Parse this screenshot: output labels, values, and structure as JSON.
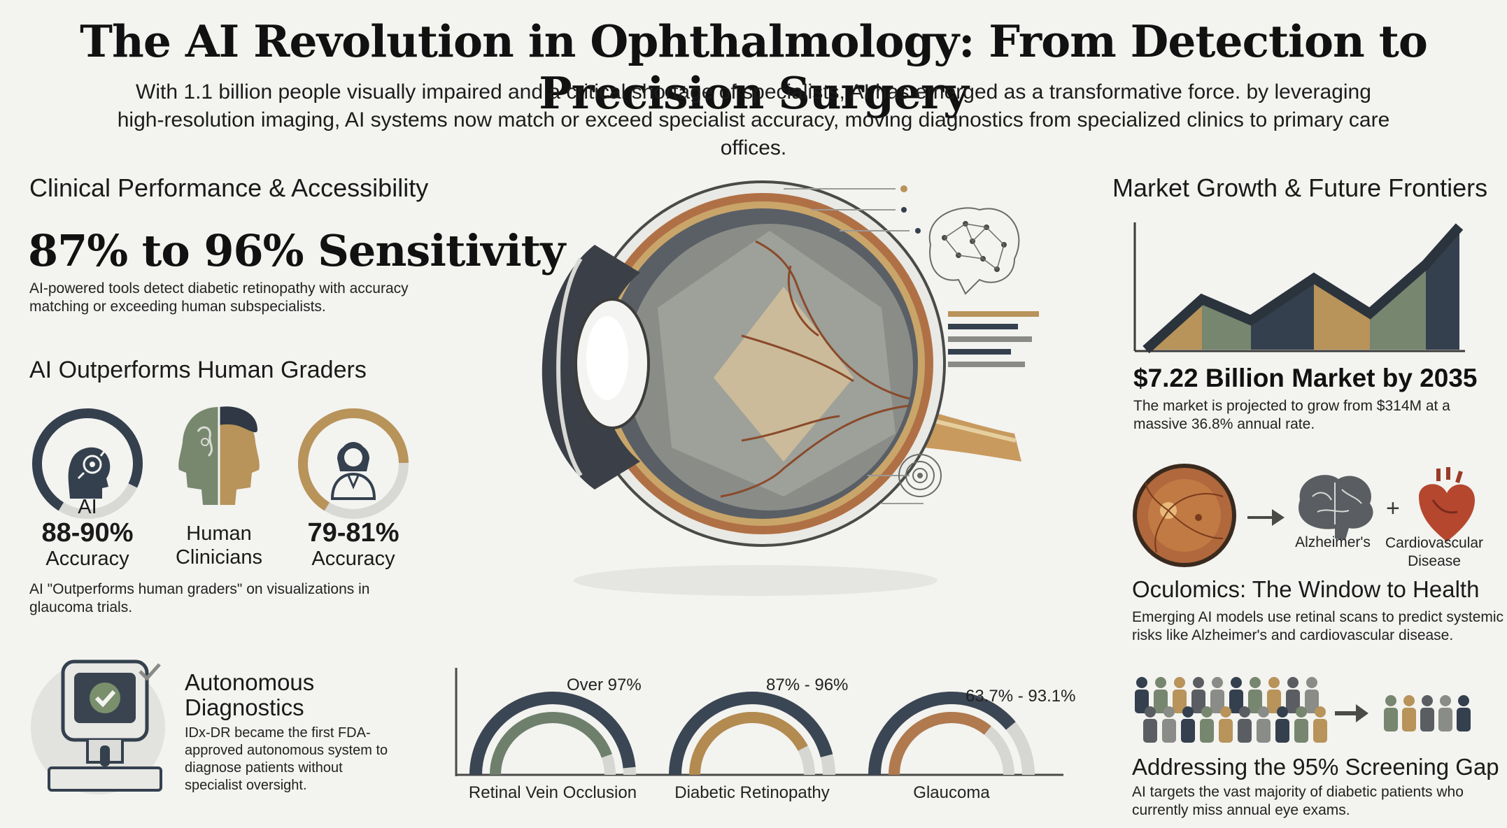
{
  "header": {
    "title": "The AI Revolution in Ophthalmology: From Detection to Precision Surgery",
    "intro_line1": "With 1.1 billion people visually impaired and a critical shortage of specialists, AI has emerged as a transformative force. by leveraging",
    "intro_line2": "high-resolution imaging, AI systems now match or exceed specialist accuracy, moving diagnostics from specialized clinics to primary care offices."
  },
  "left": {
    "section_title": "Clinical Performance & Accessibility",
    "sensitivity_stat": "87% to 96% Sensitivity",
    "sensitivity_line1": "AI-powered tools detect diabetic retinopathy with accuracy",
    "sensitivity_line2": "matching or exceeding human subspecialists.",
    "graders_title": "AI Outperforms Human Graders",
    "graders": {
      "ai_label": "AI",
      "ai_value": "88-90%",
      "ai_unit": "Accuracy",
      "ai_fraction": 0.89,
      "human_label_1": "Human",
      "human_label_2": "Clinicians",
      "human_value": "79-81%",
      "human_unit": "Accuracy",
      "human_fraction": 0.8
    },
    "graders_note_1": "AI \"Outperforms human graders\" on visualizations in",
    "graders_note_2": "glaucoma trials.",
    "autonomous_title_1": "Autonomous",
    "autonomous_title_2": "Diagnostics",
    "autonomous_body_1": "IDx-DR became the first FDA-",
    "autonomous_body_2": "approved autonomous system to",
    "autonomous_body_3": "diagnose patients without",
    "autonomous_body_4": "specialist oversight."
  },
  "arcs": [
    {
      "label": "Retinal Vein Occlusion",
      "value": "Over 97%",
      "fraction": 0.97,
      "color": "#3b4654",
      "inner": "#6e7f6c"
    },
    {
      "label": "Diabetic Retinopathy",
      "value": "87% - 96%",
      "fraction": 0.92,
      "color": "#3b4654",
      "inner": "#b38a4f"
    },
    {
      "label": "Glaucoma",
      "value": "63.7% - 93.1%",
      "fraction": 0.78,
      "color": "#3b4654",
      "inner": "#b07a4e"
    }
  ],
  "right": {
    "section_title": "Market Growth & Future Frontiers",
    "market_stat": "$7.22 Billion Market by 2035",
    "market_body_1": "The market is projected to grow from $314M at a",
    "market_body_2": "massive 36.8% annual rate.",
    "alz_label": "Alzheimer's",
    "cardio_label_1": "Cardiovascular",
    "cardio_label_2": "Disease",
    "oculomics_title": "Oculomics: The Window to Health",
    "oculomics_body_1": "Emerging AI models use retinal scans to predict systemic",
    "oculomics_body_2": "risks like Alzheimer's and cardiovascular disease.",
    "gap_title": "Addressing the 95% Screening Gap",
    "gap_body_1": "AI targets the vast majority of diabetic patients who",
    "gap_body_2": "currently miss annual eye exams."
  },
  "colors": {
    "navy": "#34404e",
    "sage": "#77866f",
    "tan": "#b8935a",
    "rust": "#b06a43",
    "grey": "#cfcfcb"
  }
}
